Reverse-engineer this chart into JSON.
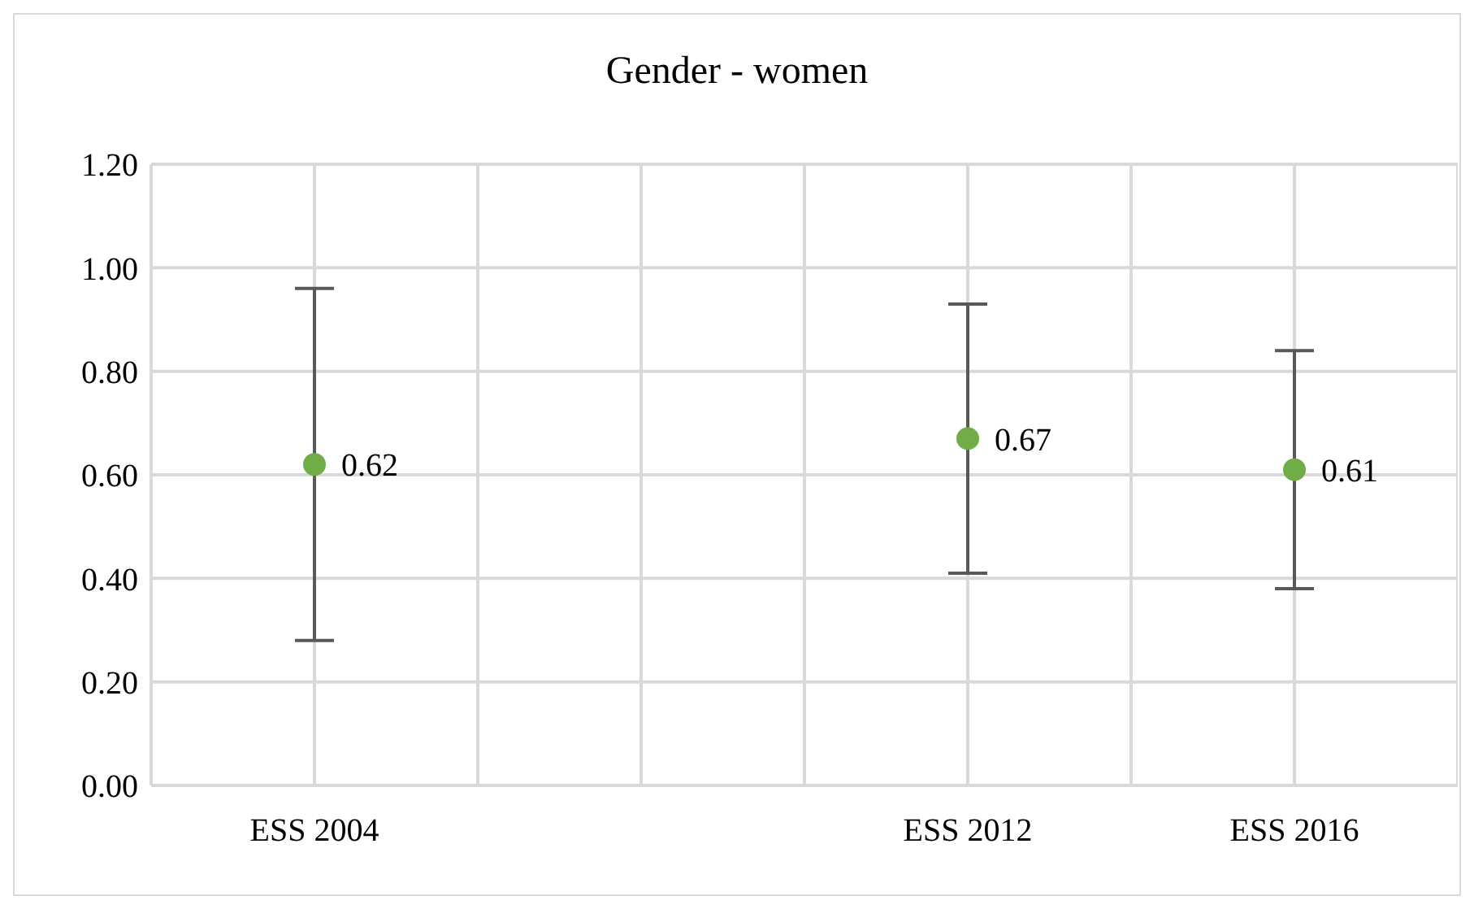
{
  "chart_data": {
    "type": "scatter",
    "title": "Gender - women",
    "categories": [
      null,
      "ESS 2004",
      null,
      null,
      null,
      "ESS 2012",
      null,
      "ESS 2016",
      null
    ],
    "ylim": [
      0,
      1.2
    ],
    "yticks": [
      {
        "value": 0,
        "label": "0.00"
      },
      {
        "value": 0.2,
        "label": "0.20"
      },
      {
        "value": 0.4,
        "label": "0.40"
      },
      {
        "value": 0.6,
        "label": "0.60"
      },
      {
        "value": 0.8,
        "label": "0.80"
      },
      {
        "value": 1,
        "label": "1.00"
      },
      {
        "value": 1.2,
        "label": "1.20"
      }
    ],
    "series": [
      {
        "color": "#70ad47",
        "values": [
          null,
          0.62,
          null,
          null,
          null,
          0.67,
          null,
          0.61,
          null
        ],
        "errors": [
          null,
          [
            0.28,
            0.96
          ],
          null,
          null,
          null,
          [
            0.41,
            0.93
          ],
          null,
          [
            0.38,
            0.84
          ],
          null
        ]
      }
    ],
    "data_labels": true,
    "grid": true,
    "marker": "circle"
  }
}
